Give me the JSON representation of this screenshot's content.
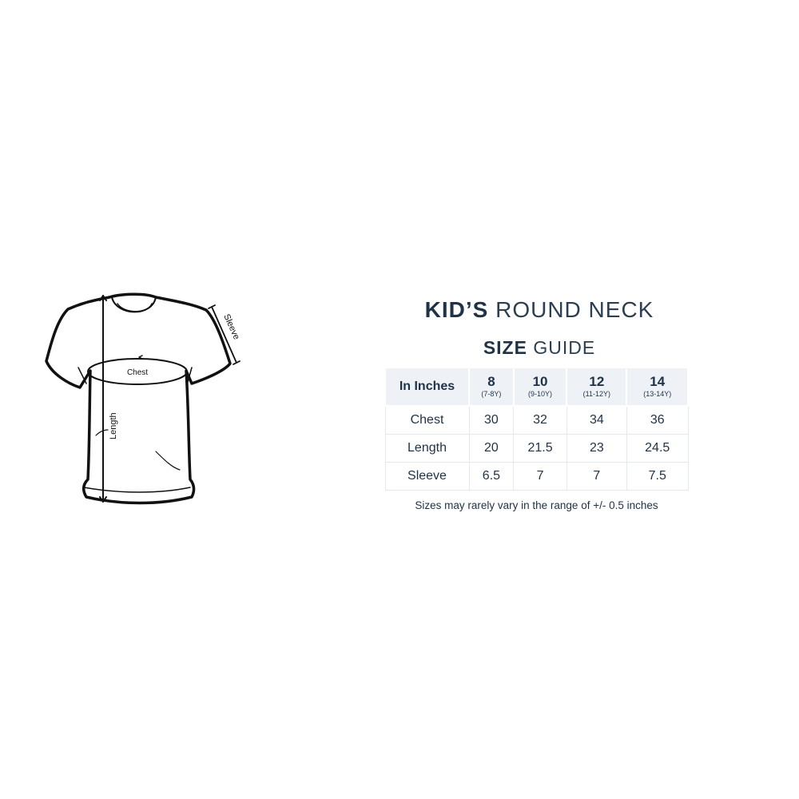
{
  "diagram": {
    "labels": {
      "chest": "Chest",
      "length": "Length",
      "sleeve": "Sleeve"
    }
  },
  "title": {
    "bold": "KID’S",
    "light": "ROUND NECK"
  },
  "subtitle": {
    "bold": "SIZE",
    "light": "GUIDE"
  },
  "table": {
    "corner": "In Inches",
    "columns": [
      {
        "size": "8",
        "age": "(7-8Y)"
      },
      {
        "size": "10",
        "age": "(9-10Y)"
      },
      {
        "size": "12",
        "age": "(11-12Y)"
      },
      {
        "size": "14",
        "age": "(13-14Y)"
      }
    ],
    "rows": [
      {
        "label": "Chest",
        "values": [
          "30",
          "32",
          "34",
          "36"
        ]
      },
      {
        "label": "Length",
        "values": [
          "20",
          "21.5",
          "23",
          "24.5"
        ]
      },
      {
        "label": "Sleeve",
        "values": [
          "6.5",
          "7",
          "7",
          "7.5"
        ]
      }
    ]
  },
  "note": "Sizes may rarely vary in the range of +/- 0.5 inches",
  "colors": {
    "text": "#1f3247",
    "header_bg": "#eef2f6",
    "border": "#e3e8ee"
  }
}
